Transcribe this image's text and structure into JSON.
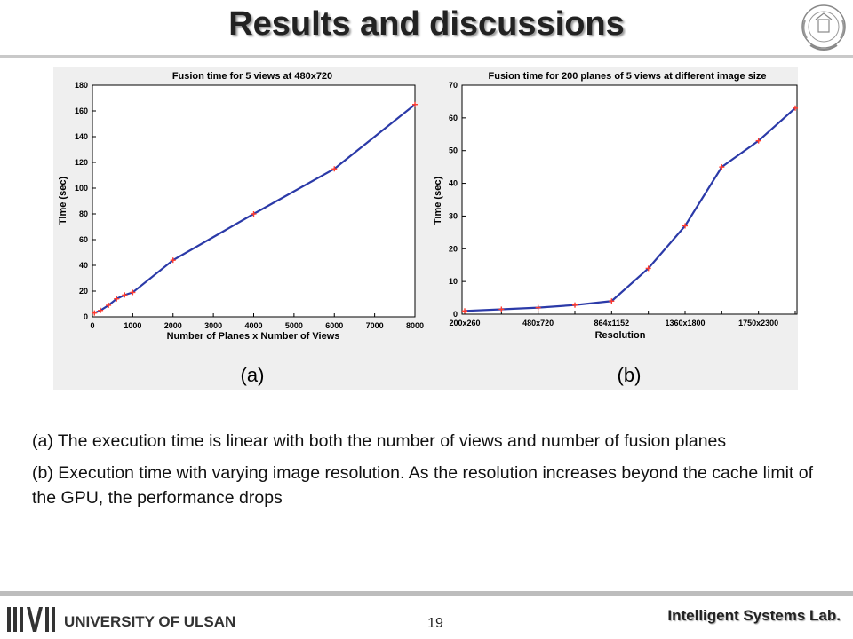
{
  "slide": {
    "title": "Results and discussions",
    "caption_a": "(a)",
    "caption_b": "(b)",
    "description_a": "(a) The execution time is linear with both the number of views and number of fusion planes",
    "description_b": "(b) Execution time with varying image resolution. As the resolution increases beyond the cache limit of the GPU, the performance drops",
    "page_number": "19",
    "lab_name": "Intelligent Systems Lab.",
    "university": "UNIVERSITY OF ULSAN"
  },
  "colors": {
    "line": "#2b3aa8",
    "marker": "#ff3b2f",
    "title_text": "#222222",
    "panel_bg": "#efefef"
  },
  "chart_data": [
    {
      "type": "line",
      "title": "Fusion time for 5 views at 480x720",
      "xlabel": "Number of Planes x Number of Views",
      "ylabel": "Time (sec)",
      "xlim": [
        0,
        8000
      ],
      "ylim": [
        0,
        180
      ],
      "xticks": [
        0,
        1000,
        2000,
        3000,
        4000,
        5000,
        6000,
        7000,
        8000
      ],
      "yticks": [
        0,
        20,
        40,
        60,
        80,
        100,
        120,
        140,
        160,
        180
      ],
      "grid": false,
      "series": [
        {
          "x": [
            50,
            200,
            400,
            600,
            800,
            1000,
            2000,
            4000,
            6000,
            8000
          ],
          "y": [
            3,
            5,
            9,
            14,
            17,
            19,
            44,
            80,
            115,
            165
          ]
        }
      ]
    },
    {
      "type": "line",
      "title": "Fusion time for 200 planes of 5 views at different image size",
      "xlabel": "Resolution",
      "ylabel": "Time (sec)",
      "ylim": [
        0,
        70
      ],
      "yticks": [
        0,
        10,
        20,
        30,
        40,
        50,
        60,
        70
      ],
      "categories": [
        "200x260",
        "",
        "480x720",
        "",
        "864x1152",
        "",
        "1360x1800",
        "",
        "1750x2300",
        ""
      ],
      "xtick_labels": [
        "200x260",
        "480x720",
        "864x1152",
        "1360x1800",
        "1750x2300"
      ],
      "grid": false,
      "series": [
        {
          "values": [
            1,
            1.5,
            2,
            2.8,
            4,
            14,
            27,
            45,
            53,
            63
          ]
        }
      ]
    }
  ]
}
